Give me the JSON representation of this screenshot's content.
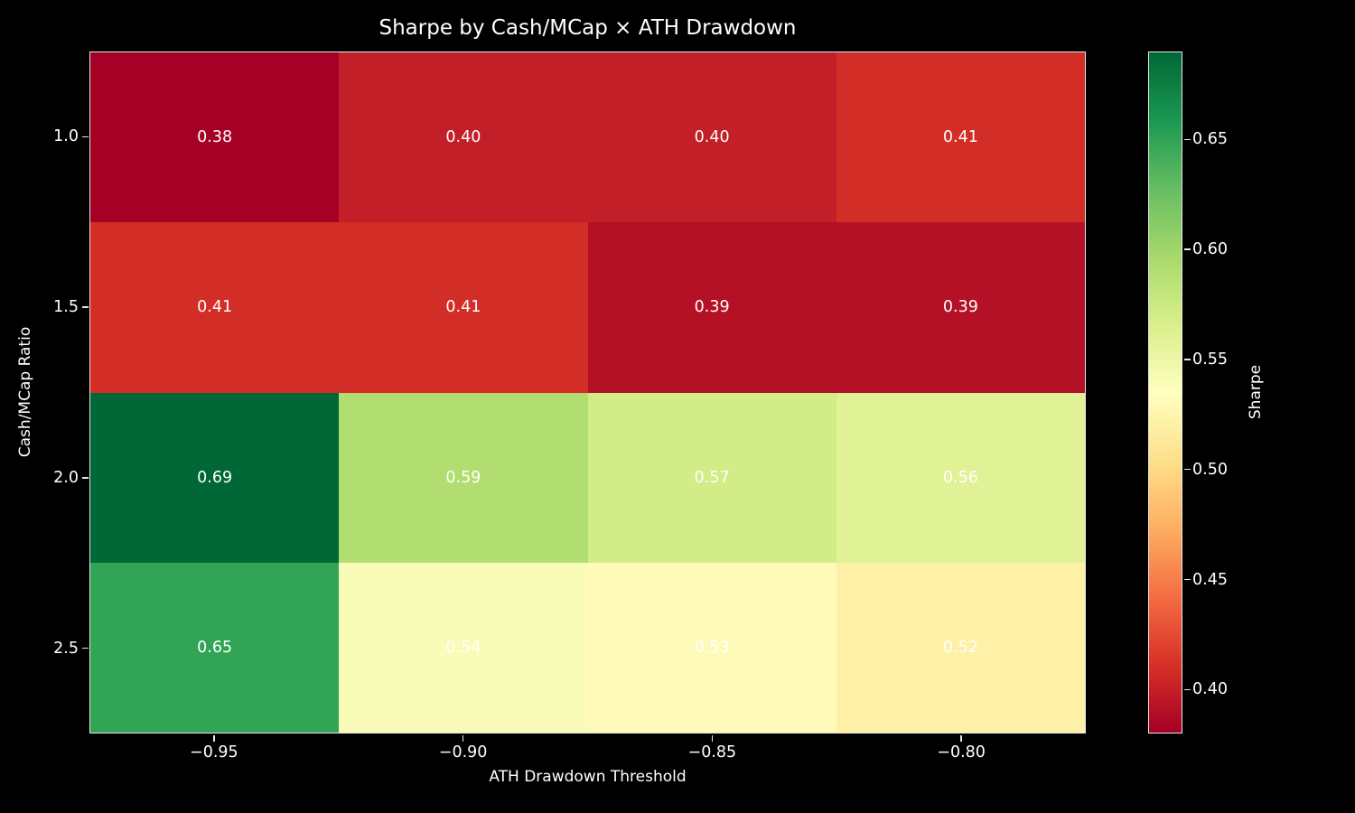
{
  "figure": {
    "background": "#000000",
    "text_color": "#ffffff",
    "spine_color": "#e6e6e6"
  },
  "chart_data": {
    "type": "heatmap",
    "title": "Sharpe by Cash/MCap × ATH Drawdown",
    "xlabel": "ATH Drawdown Threshold",
    "ylabel": "Cash/MCap Ratio",
    "x_tick_labels": [
      "−0.95",
      "−0.90",
      "−0.85",
      "−0.80"
    ],
    "y_tick_labels": [
      "1.0",
      "1.5",
      "2.0",
      "2.5"
    ],
    "x_values": [
      -0.95,
      -0.9,
      -0.85,
      -0.8
    ],
    "y_values": [
      1.0,
      1.5,
      2.0,
      2.5
    ],
    "values": [
      [
        0.38,
        0.4,
        0.4,
        0.41
      ],
      [
        0.41,
        0.41,
        0.39,
        0.39
      ],
      [
        0.69,
        0.59,
        0.57,
        0.56
      ],
      [
        0.65,
        0.54,
        0.53,
        0.52
      ]
    ],
    "cell_labels": [
      [
        "0.38",
        "0.40",
        "0.40",
        "0.41"
      ],
      [
        "0.41",
        "0.41",
        "0.39",
        "0.39"
      ],
      [
        "0.69",
        "0.59",
        "0.57",
        "0.56"
      ],
      [
        "0.65",
        "0.54",
        "0.53",
        "0.52"
      ]
    ],
    "cell_colors": [
      [
        "#a50026",
        "#c31f28",
        "#c31f28",
        "#d32d27"
      ],
      [
        "#d32d27",
        "#d32d27",
        "#b41026",
        "#b41026"
      ],
      [
        "#006837",
        "#b2de71",
        "#d2ec87",
        "#e0f295"
      ],
      [
        "#31a456",
        "#f9fcb7",
        "#fffab7",
        "#fef0a6"
      ]
    ],
    "annotation_color": "#ffffff",
    "colormap": "RdYlGn",
    "vmin": 0.38,
    "vmax": 0.69,
    "grid": false,
    "legend_position": "right-colorbar",
    "colorbar": {
      "label": "Sharpe",
      "ticks": [
        {
          "label": "0.65",
          "value": 0.65
        },
        {
          "label": "0.60",
          "value": 0.6
        },
        {
          "label": "0.55",
          "value": 0.55
        },
        {
          "label": "0.50",
          "value": 0.5
        },
        {
          "label": "0.45",
          "value": 0.45
        },
        {
          "label": "0.40",
          "value": 0.4
        }
      ],
      "gradient_stops_bottom_to_top": [
        "#a50026",
        "#d73027",
        "#f46d43",
        "#fdae61",
        "#fee08b",
        "#ffffbf",
        "#d9ef8b",
        "#a6d96a",
        "#66bd63",
        "#1a9850",
        "#006837"
      ]
    }
  }
}
